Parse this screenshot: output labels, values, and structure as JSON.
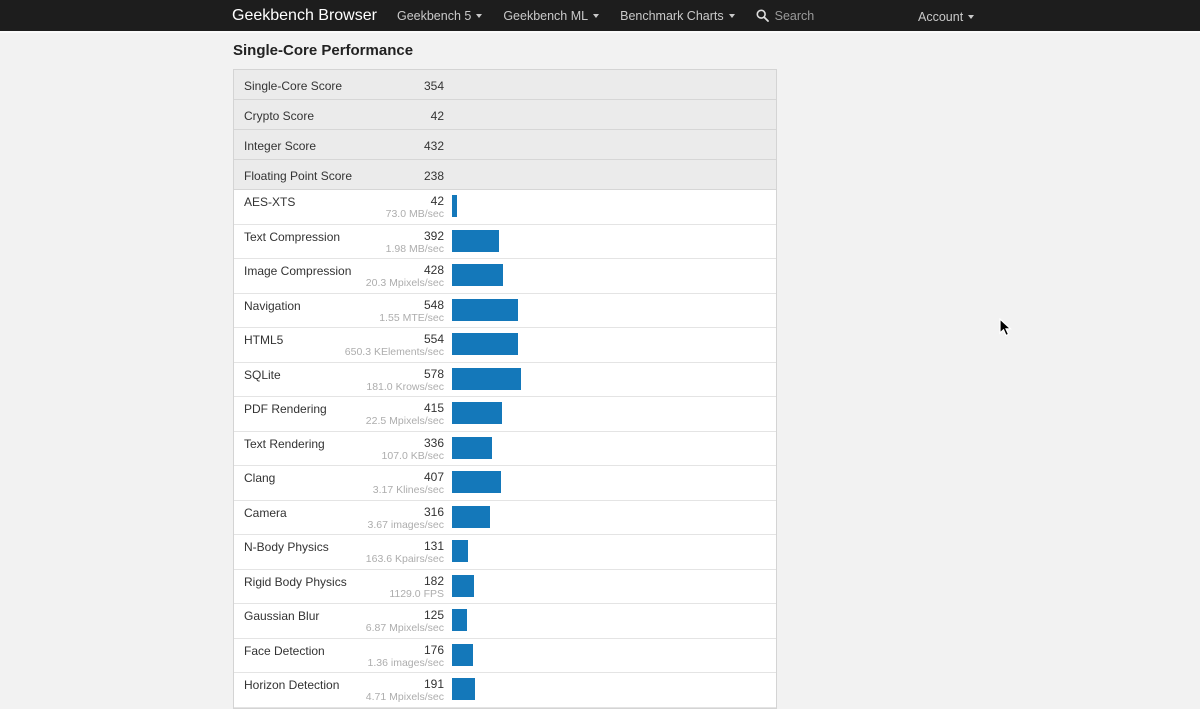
{
  "navbar": {
    "brand": "Geekbench Browser",
    "items": [
      {
        "label": "Geekbench 5"
      },
      {
        "label": "Geekbench ML"
      },
      {
        "label": "Benchmark Charts"
      }
    ],
    "search_label": "Search",
    "account_label": "Account",
    "colors": {
      "background": "#1d1d1d",
      "brand_text": "#ffffff",
      "link_text": "#c9c9c9"
    }
  },
  "page": {
    "title": "Single-Core Performance",
    "background": "#f2f2f2",
    "accent_bar_color": "#1478ba",
    "summary_row_color": "#ebebeb"
  },
  "summary_rows": [
    {
      "label": "Single-Core Score",
      "value": "354"
    },
    {
      "label": "Crypto Score",
      "value": "42"
    },
    {
      "label": "Integer Score",
      "value": "432"
    },
    {
      "label": "Floating Point Score",
      "value": "238"
    }
  ],
  "benchmarks": [
    {
      "name": "AES-XTS",
      "score": 42,
      "rate": "73.0 MB/sec"
    },
    {
      "name": "Text Compression",
      "score": 392,
      "rate": "1.98 MB/sec"
    },
    {
      "name": "Image Compression",
      "score": 428,
      "rate": "20.3 Mpixels/sec"
    },
    {
      "name": "Navigation",
      "score": 548,
      "rate": "1.55 MTE/sec"
    },
    {
      "name": "HTML5",
      "score": 554,
      "rate": "650.3 KElements/sec"
    },
    {
      "name": "SQLite",
      "score": 578,
      "rate": "181.0 Krows/sec"
    },
    {
      "name": "PDF Rendering",
      "score": 415,
      "rate": "22.5 Mpixels/sec"
    },
    {
      "name": "Text Rendering",
      "score": 336,
      "rate": "107.0 KB/sec"
    },
    {
      "name": "Clang",
      "score": 407,
      "rate": "3.17 Klines/sec"
    },
    {
      "name": "Camera",
      "score": 316,
      "rate": "3.67 images/sec"
    },
    {
      "name": "N-Body Physics",
      "score": 131,
      "rate": "163.6 Kpairs/sec"
    },
    {
      "name": "Rigid Body Physics",
      "score": 182,
      "rate": "1129.0 FPS"
    },
    {
      "name": "Gaussian Blur",
      "score": 125,
      "rate": "6.87 Mpixels/sec"
    },
    {
      "name": "Face Detection",
      "score": 176,
      "rate": "1.36 images/sec"
    },
    {
      "name": "Horizon Detection",
      "score": 191,
      "rate": "4.71 Mpixels/sec"
    }
  ],
  "chart_data": {
    "type": "bar",
    "orientation": "horizontal",
    "title": "Single-Core Performance",
    "categories": [
      "AES-XTS",
      "Text Compression",
      "Image Compression",
      "Navigation",
      "HTML5",
      "SQLite",
      "PDF Rendering",
      "Text Rendering",
      "Clang",
      "Camera",
      "N-Body Physics",
      "Rigid Body Physics",
      "Gaussian Blur",
      "Face Detection",
      "Horizon Detection"
    ],
    "values": [
      42,
      392,
      428,
      548,
      554,
      578,
      415,
      336,
      407,
      316,
      131,
      182,
      125,
      176,
      191
    ],
    "rate_labels": [
      "73.0 MB/sec",
      "1.98 MB/sec",
      "20.3 Mpixels/sec",
      "1.55 MTE/sec",
      "650.3 KElements/sec",
      "181.0 Krows/sec",
      "22.5 Mpixels/sec",
      "107.0 KB/sec",
      "3.17 Klines/sec",
      "3.67 images/sec",
      "163.6 Kpairs/sec",
      "1129.0 FPS",
      "6.87 Mpixels/sec",
      "1.36 images/sec",
      "4.71 Mpixels/sec"
    ],
    "bar_color": "#1478ba",
    "legend": "none",
    "grid": false
  }
}
